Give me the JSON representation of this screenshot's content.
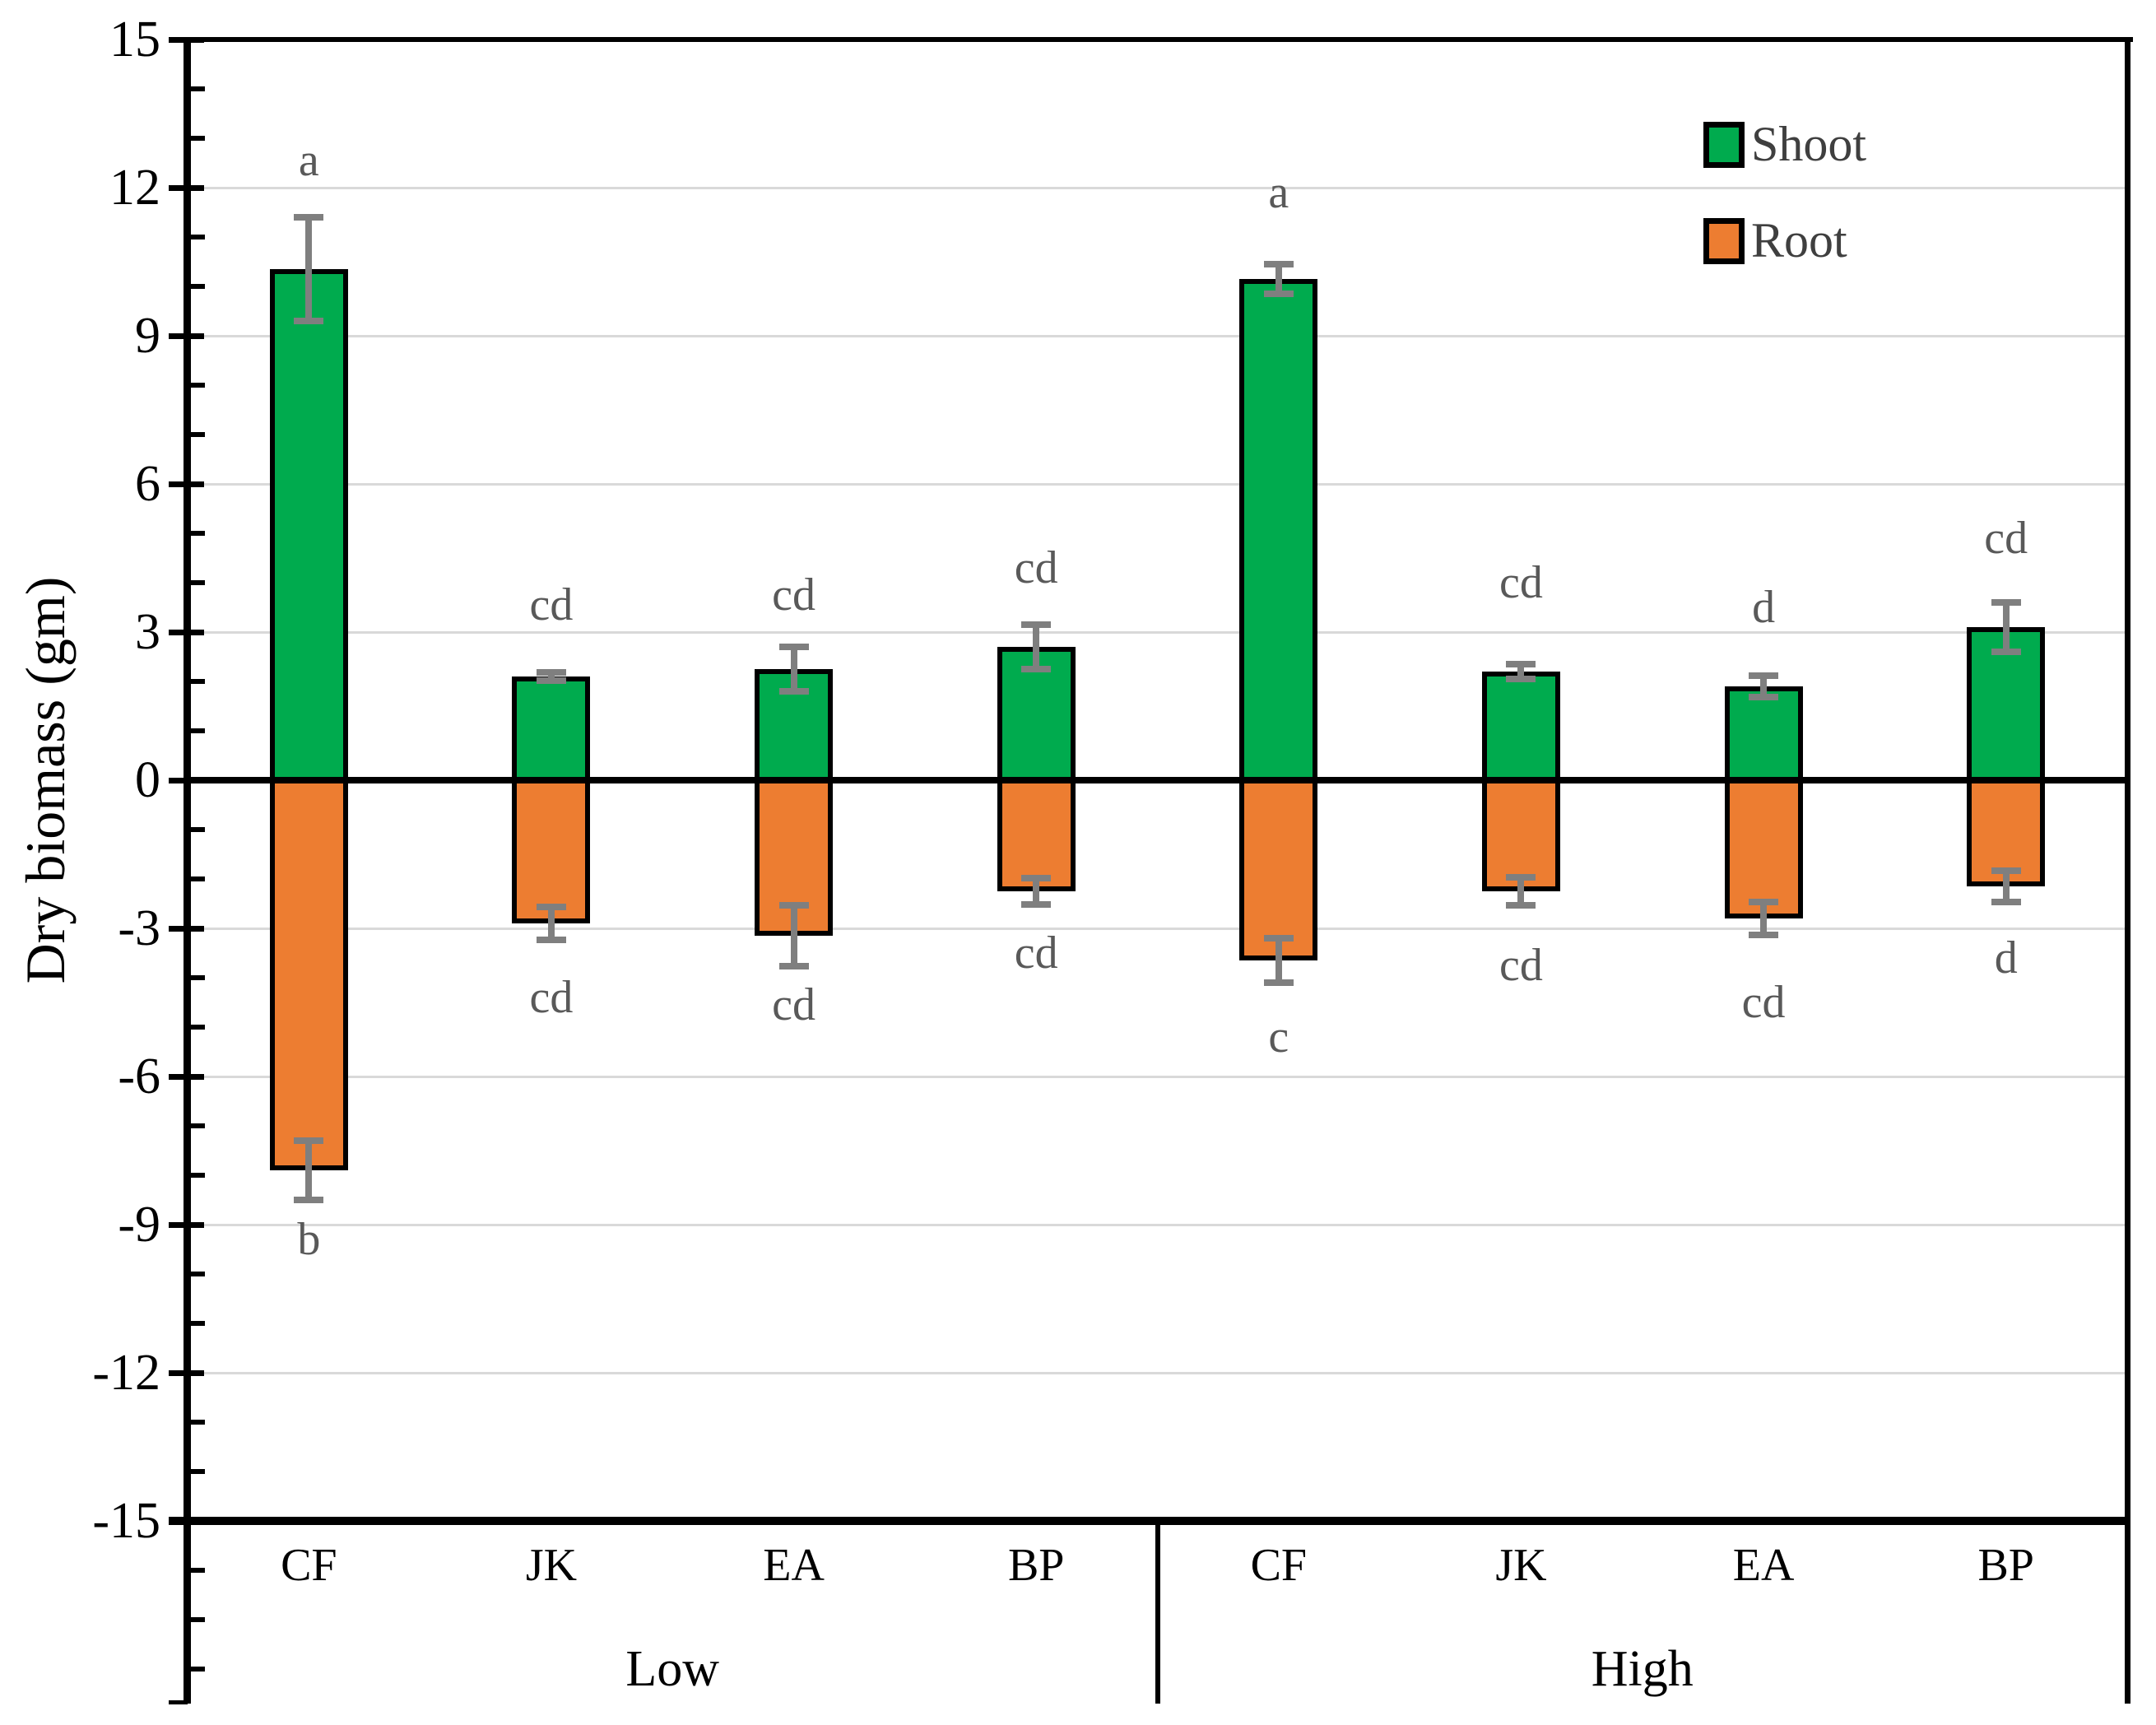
{
  "chart_data": {
    "type": "bar",
    "subtype": "diverging-stacked-with-error-bars",
    "title": "",
    "xlabel": "",
    "ylabel": "Dry biomass (gm)",
    "ylim": [
      -15,
      15
    ],
    "ytick_values": [
      15,
      12,
      9,
      6,
      3,
      0,
      -3,
      -6,
      -9,
      -12,
      -15
    ],
    "ytick_labels": [
      "15",
      "12",
      "9",
      "6",
      "3",
      "0",
      "-3",
      "-6",
      "-9",
      "-12",
      "-15"
    ],
    "grid": "horizontal-light-gray",
    "legend_position": "top-right-inside",
    "groups": [
      "Low",
      "High"
    ],
    "categories": [
      "CF",
      "JK",
      "EA",
      "BP"
    ],
    "series": [
      {
        "name": "Shoot",
        "color": "#00AB4E",
        "direction": "positive"
      },
      {
        "name": "Root",
        "color": "#ED7D31",
        "direction": "negative"
      }
    ],
    "bars": [
      {
        "group": "Low",
        "category": "CF",
        "shoot": 10.35,
        "shoot_err": 1.05,
        "shoot_letter": "a",
        "shoot_letter_y": 12.55,
        "root": -7.9,
        "root_err": 0.6,
        "root_letter": "b",
        "root_letter_y": -9.3
      },
      {
        "group": "Low",
        "category": "JK",
        "shoot": 2.1,
        "shoot_err": 0.08,
        "shoot_letter": "cd",
        "shoot_letter_y": 3.55,
        "root": -2.9,
        "root_err": 0.34,
        "root_letter": "cd",
        "root_letter_y": -4.4
      },
      {
        "group": "Low",
        "category": "EA",
        "shoot": 2.25,
        "shoot_err": 0.45,
        "shoot_letter": "cd",
        "shoot_letter_y": 3.75,
        "root": -3.15,
        "root_err": 0.62,
        "root_letter": "cd",
        "root_letter_y": -4.55
      },
      {
        "group": "Low",
        "category": "BP",
        "shoot": 2.7,
        "shoot_err": 0.45,
        "shoot_letter": "cd",
        "shoot_letter_y": 4.3,
        "root": -2.25,
        "root_err": 0.26,
        "root_letter": "cd",
        "root_letter_y": -3.5
      },
      {
        "group": "High",
        "category": "CF",
        "shoot": 10.15,
        "shoot_err": 0.3,
        "shoot_letter": "a",
        "shoot_letter_y": 11.9,
        "root": -3.65,
        "root_err": 0.45,
        "root_letter": "c",
        "root_letter_y": -5.2
      },
      {
        "group": "High",
        "category": "JK",
        "shoot": 2.2,
        "shoot_err": 0.15,
        "shoot_letter": "cd",
        "shoot_letter_y": 4.0,
        "root": -2.25,
        "root_err": 0.28,
        "root_letter": "cd",
        "root_letter_y": -3.75
      },
      {
        "group": "High",
        "category": "EA",
        "shoot": 1.9,
        "shoot_err": 0.22,
        "shoot_letter": "d",
        "shoot_letter_y": 3.5,
        "root": -2.8,
        "root_err": 0.33,
        "root_letter": "cd",
        "root_letter_y": -4.5
      },
      {
        "group": "High",
        "category": "BP",
        "shoot": 3.1,
        "shoot_err": 0.5,
        "shoot_letter": "cd",
        "shoot_letter_y": 4.9,
        "root": -2.15,
        "root_err": 0.32,
        "root_letter": "d",
        "root_letter_y": -3.6
      }
    ],
    "colors": {
      "shoot_fill": "#00AB4E",
      "root_fill": "#ED7D31",
      "bar_border": "#000000",
      "error_bar": "#7F7F7F",
      "letter_text": "#595959",
      "gridline": "#D9D9D9",
      "axis": "#000000",
      "legend_text": "#3F3F3F"
    }
  }
}
